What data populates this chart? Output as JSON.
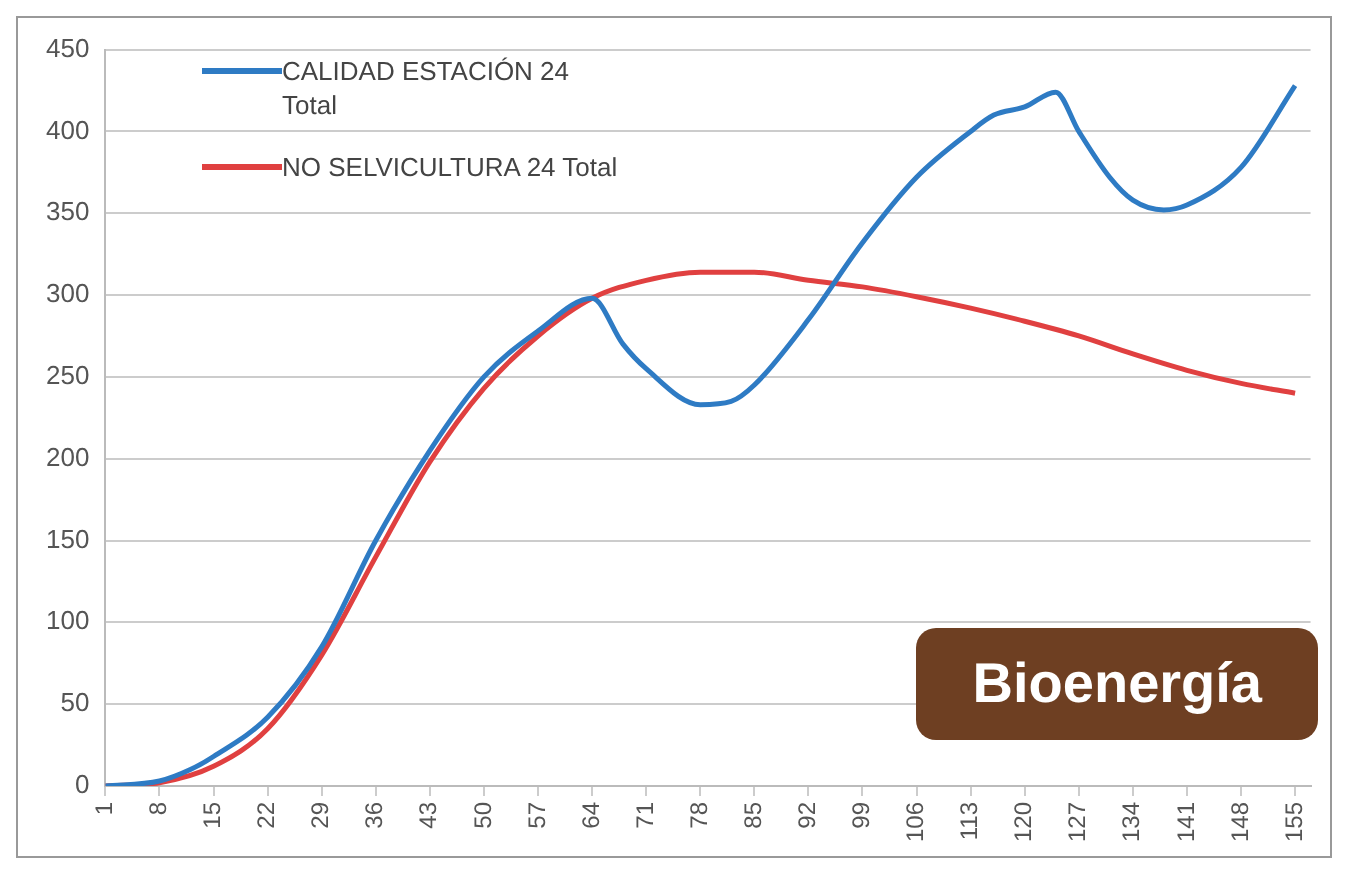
{
  "chart_data": {
    "type": "line",
    "xlim": [
      1,
      157
    ],
    "xticks": [
      1,
      8,
      15,
      22,
      29,
      36,
      43,
      50,
      57,
      64,
      71,
      78,
      85,
      92,
      99,
      106,
      113,
      120,
      127,
      134,
      141,
      148,
      155
    ],
    "ylim": [
      0,
      450
    ],
    "yticks": [
      0,
      50,
      100,
      150,
      200,
      250,
      300,
      350,
      400,
      450
    ],
    "grid": "y",
    "legend": "top left",
    "marker": "none",
    "line_style": "solid",
    "annotations": [
      "Bioenergía"
    ],
    "series": [
      {
        "name": "CALIDAD ESTACIÓN 24 Total",
        "color": "#2e7bc4",
        "x": [
          1,
          8,
          12,
          15,
          22,
          29,
          36,
          43,
          50,
          57,
          64,
          68,
          71,
          78,
          82,
          85,
          92,
          99,
          106,
          113,
          116,
          120,
          124,
          127,
          131,
          134,
          138,
          141,
          148,
          155
        ],
        "values": [
          0,
          3,
          10,
          18,
          42,
          85,
          150,
          205,
          250,
          278,
          298,
          270,
          255,
          233,
          235,
          245,
          285,
          332,
          372,
          400,
          410,
          415,
          424,
          400,
          372,
          358,
          352,
          355,
          378,
          428
        ]
      },
      {
        "name": "NO SELVICULTURA 24 Total",
        "color": "#e04040",
        "x": [
          1,
          8,
          15,
          22,
          29,
          36,
          43,
          50,
          57,
          64,
          71,
          78,
          85,
          92,
          99,
          106,
          113,
          120,
          127,
          134,
          141,
          148,
          155
        ],
        "values": [
          0,
          2,
          12,
          35,
          80,
          140,
          198,
          243,
          275,
          298,
          309,
          314,
          314,
          309,
          305,
          299,
          292,
          284,
          275,
          264,
          254,
          246,
          240
        ]
      }
    ]
  }
}
